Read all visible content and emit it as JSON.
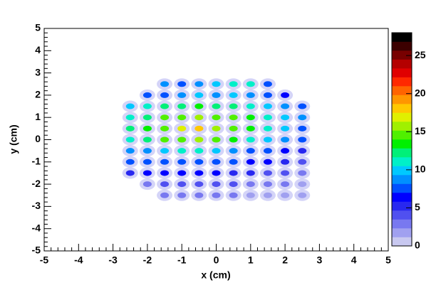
{
  "chart_data": {
    "type": "heatmap",
    "xlabel": "x (cm)",
    "ylabel": "y (cm)",
    "xlim": [
      -5,
      5
    ],
    "xticks": [
      -5,
      -4,
      -3,
      -2,
      -1,
      0,
      1,
      2,
      3,
      4,
      5
    ],
    "ylim": [
      -5,
      5
    ],
    "yticks": [
      -5,
      -4,
      -3,
      -2,
      -1,
      0,
      1,
      2,
      3,
      4,
      5
    ],
    "zlim": [
      0,
      28
    ],
    "zticks": [
      0,
      5,
      10,
      15,
      20,
      25
    ],
    "palette": [
      "#c8c8f0",
      "#a0a0f0",
      "#7878f0",
      "#5050f0",
      "#2828f0",
      "#0000ff",
      "#0050ff",
      "#0090ff",
      "#00c8ff",
      "#00f0c8",
      "#00f078",
      "#00f000",
      "#50f000",
      "#a0f000",
      "#e0f000",
      "#ffc800",
      "#ff9600",
      "#ff6400",
      "#ff2800",
      "#e00000",
      "#b40000",
      "#780000",
      "#3c0000",
      "#000000"
    ],
    "x": [
      -2.5,
      -2,
      -1.5,
      -1,
      -0.5,
      0,
      0.5,
      1,
      1.5,
      2,
      2.5
    ],
    "y": [
      2.5,
      2,
      1.5,
      1,
      0.5,
      0,
      -0.5,
      -1,
      -1.5,
      -2,
      -2.5
    ],
    "values": [
      [
        null,
        null,
        9,
        8,
        9,
        10,
        11,
        11,
        8,
        null,
        null
      ],
      [
        null,
        7,
        8,
        9,
        10,
        9,
        10,
        9,
        8,
        6,
        null
      ],
      [
        10,
        11,
        12,
        12,
        13,
        12,
        12,
        11,
        10,
        9,
        8
      ],
      [
        11,
        12,
        14,
        15,
        16,
        15,
        14,
        13,
        11,
        10,
        9
      ],
      [
        12,
        13,
        15,
        17,
        18,
        16,
        15,
        13,
        11,
        10,
        8
      ],
      [
        11,
        12,
        14,
        15,
        16,
        14,
        13,
        11,
        10,
        9,
        7
      ],
      [
        9,
        9,
        10,
        11,
        11,
        10,
        9,
        8,
        7,
        6,
        5
      ],
      [
        7,
        7,
        8,
        8,
        8,
        8,
        7,
        6,
        6,
        5,
        4
      ],
      [
        5,
        6,
        6,
        6,
        6,
        6,
        5,
        5,
        4,
        4,
        3
      ],
      [
        null,
        3,
        4,
        4,
        4,
        4,
        4,
        3,
        3,
        3,
        2
      ],
      [
        null,
        null,
        3,
        3,
        3,
        3,
        3,
        2,
        2,
        2,
        2
      ]
    ]
  }
}
